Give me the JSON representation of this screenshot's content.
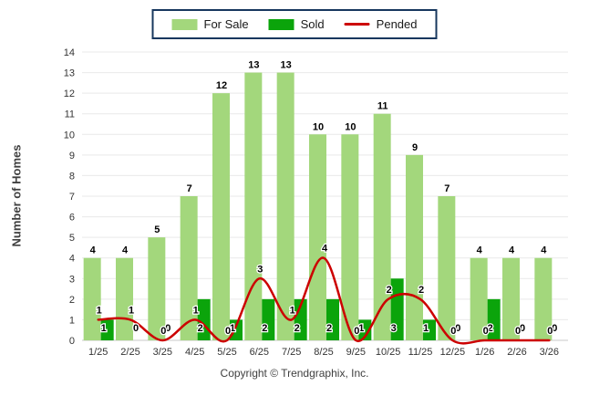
{
  "legend": {
    "items": [
      {
        "label": "For Sale",
        "color": "#A3D77C",
        "type": "bar"
      },
      {
        "label": "Sold",
        "color": "#0BA40B",
        "type": "bar"
      },
      {
        "label": "Pended",
        "color": "#CC0000",
        "type": "line"
      }
    ],
    "border_color": "#17375E"
  },
  "y_axis_title": "Number of Homes",
  "footer": "Copyright © Trendgraphix, Inc.",
  "colors": {
    "for_sale": "#A3D77C",
    "sold": "#0BA40B",
    "pended": "#CC0000",
    "grid": "#E9E9E9",
    "axis": "#C8C8C8",
    "tick_text": "#333333"
  },
  "chart_data": {
    "type": "bar",
    "title": "",
    "xlabel": "",
    "ylabel": "Number of Homes",
    "ylim": [
      0,
      14
    ],
    "ytick_step": 1,
    "grid": true,
    "legend_position": "top",
    "categories": [
      "1/25",
      "2/25",
      "3/25",
      "4/25",
      "5/25",
      "6/25",
      "7/25",
      "8/25",
      "9/25",
      "10/25",
      "11/25",
      "12/25",
      "1/26",
      "2/26",
      "3/26"
    ],
    "series": [
      {
        "name": "For Sale",
        "type": "bar",
        "color": "#A3D77C",
        "values": [
          4,
          4,
          5,
          7,
          12,
          13,
          13,
          10,
          10,
          11,
          9,
          7,
          4,
          4,
          4
        ]
      },
      {
        "name": "Sold",
        "type": "bar",
        "color": "#0BA40B",
        "values": [
          1,
          0,
          0,
          2,
          1,
          2,
          2,
          2,
          1,
          3,
          1,
          0,
          2,
          0,
          0
        ]
      },
      {
        "name": "Pended",
        "type": "line",
        "color": "#CC0000",
        "values": [
          1,
          1,
          0,
          1,
          0,
          3,
          1,
          4,
          0,
          2,
          2,
          0,
          0,
          0,
          0
        ]
      }
    ]
  }
}
